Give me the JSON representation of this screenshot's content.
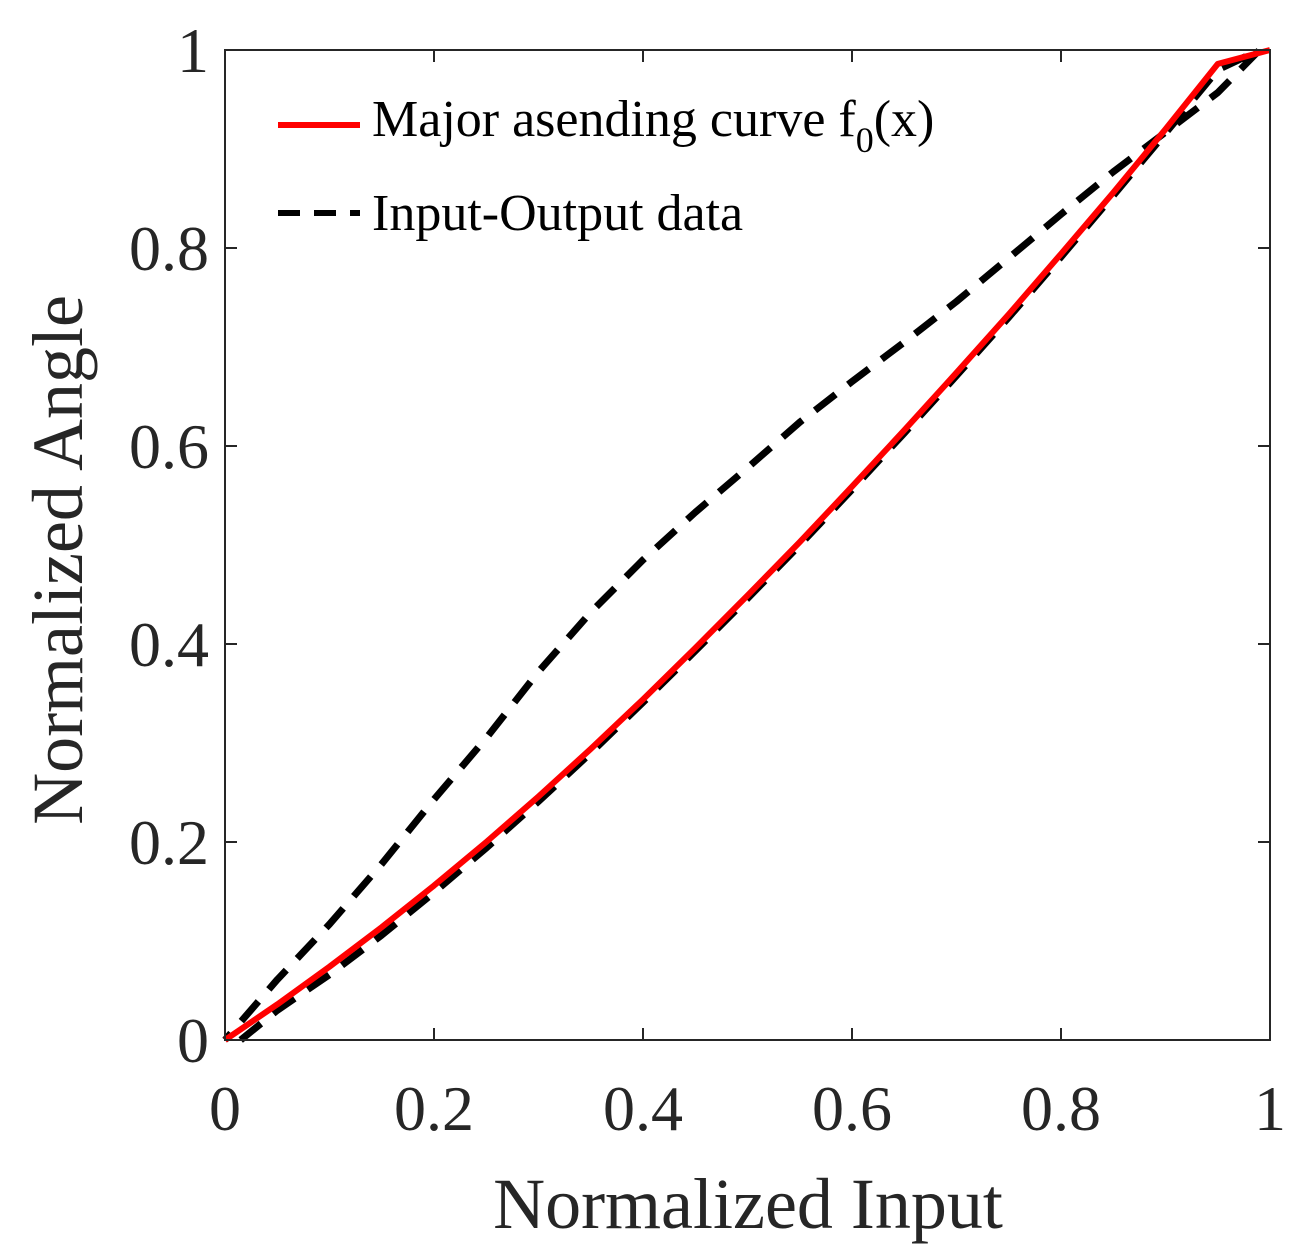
{
  "chart_data": {
    "type": "line",
    "title": "",
    "xlabel": "Normalized Input",
    "ylabel": "Normalized Angle",
    "xlim": [
      0,
      1
    ],
    "ylim": [
      0,
      1
    ],
    "xticks": [
      0,
      0.2,
      0.4,
      0.6,
      0.8,
      1
    ],
    "yticks": [
      0,
      0.2,
      0.4,
      0.6,
      0.8,
      1
    ],
    "xtick_labels": [
      "0",
      "0.2",
      "0.4",
      "0.6",
      "0.8",
      "1"
    ],
    "ytick_labels": [
      "0",
      "0.2",
      "0.4",
      "0.6",
      "0.8",
      "1"
    ],
    "grid": false,
    "legend_position": "top-left",
    "legend": {
      "major_prefix": "Major asending curve f",
      "major_sub": "0",
      "major_suffix": "(x)"
    },
    "series": [
      {
        "name": "Major asending curve f0(x)",
        "style": "solid",
        "color": "#ff0000",
        "x": [
          0,
          0.05,
          0.1,
          0.15,
          0.2,
          0.25,
          0.3,
          0.35,
          0.4,
          0.45,
          0.5,
          0.55,
          0.6,
          0.65,
          0.7,
          0.75,
          0.8,
          0.85,
          0.9,
          0.95,
          1.0
        ],
        "y": [
          0,
          0.036,
          0.074,
          0.114,
          0.156,
          0.2,
          0.246,
          0.294,
          0.344,
          0.396,
          0.449,
          0.503,
          0.559,
          0.616,
          0.674,
          0.733,
          0.794,
          0.856,
          0.92,
          0.986,
          1.0
        ]
      },
      {
        "name": "Input-Output data",
        "style": "dashed",
        "color": "#000000",
        "x": [
          0.015,
          0.05,
          0.1,
          0.15,
          0.2,
          0.25,
          0.3,
          0.35,
          0.4,
          0.45,
          0.5,
          0.55,
          0.6,
          0.65,
          0.7,
          0.75,
          0.8,
          0.85,
          0.9,
          0.95,
          0.99,
          0.95,
          0.9,
          0.85,
          0.8,
          0.75,
          0.7,
          0.65,
          0.6,
          0.55,
          0.5,
          0.45,
          0.4,
          0.35,
          0.3,
          0.25,
          0.2,
          0.15,
          0.1,
          0.05,
          0.0
        ],
        "y": [
          0.0,
          0.03,
          0.066,
          0.106,
          0.149,
          0.194,
          0.241,
          0.29,
          0.341,
          0.393,
          0.446,
          0.5,
          0.556,
          0.613,
          0.671,
          0.73,
          0.791,
          0.853,
          0.916,
          0.98,
          1.0,
          0.957,
          0.917,
          0.877,
          0.834,
          0.79,
          0.746,
          0.705,
          0.665,
          0.624,
          0.578,
          0.533,
          0.485,
          0.432,
          0.372,
          0.305,
          0.243,
          0.178,
          0.117,
          0.061,
          0.0
        ]
      }
    ]
  }
}
